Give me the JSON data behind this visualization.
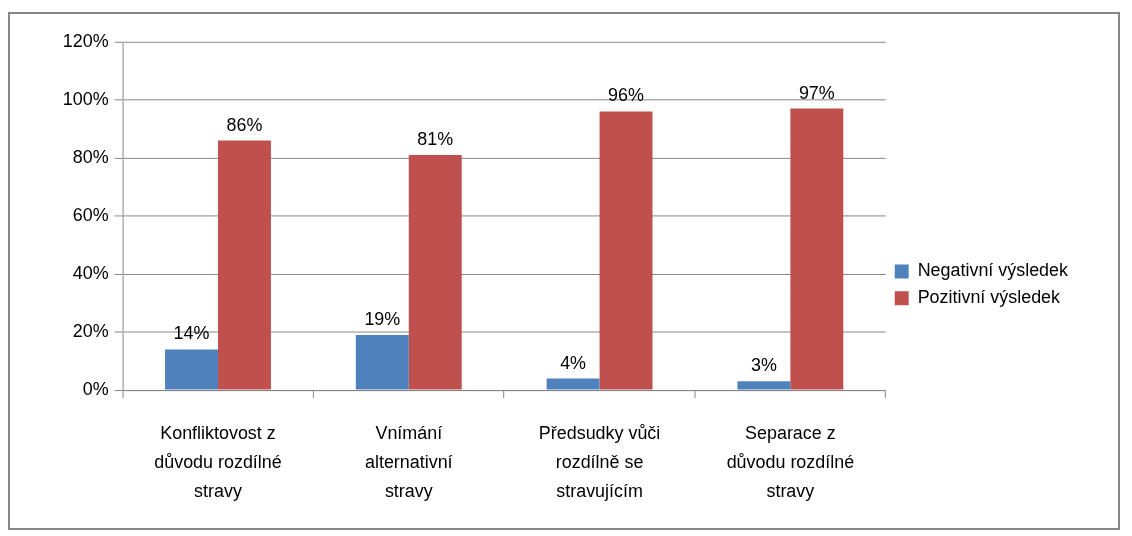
{
  "chart_data": {
    "type": "bar",
    "categories": [
      "Konfliktovost z důvodu rozdílné stravy",
      "Vnímání alternativní stravy",
      "Předsudky vůči rozdílně se stravujícím",
      "Separace z důvodu rozdílné stravy"
    ],
    "series": [
      {
        "name": "Negativní výsledek",
        "color": "#4f81bd",
        "values": [
          14,
          19,
          4,
          3
        ],
        "value_labels": [
          "14%",
          "19%",
          "4%",
          "3%"
        ]
      },
      {
        "name": "Pozitivní výsledek",
        "color": "#c0504d",
        "values": [
          86,
          81,
          96,
          97
        ],
        "value_labels": [
          "86%",
          "81%",
          "96%",
          "97%"
        ]
      }
    ],
    "ylim": [
      0,
      120
    ],
    "yticks": [
      {
        "value": 0,
        "label": "0%"
      },
      {
        "value": 20,
        "label": "20%"
      },
      {
        "value": 40,
        "label": "40%"
      },
      {
        "value": 60,
        "label": "60%"
      },
      {
        "value": 80,
        "label": "80%"
      },
      {
        "value": 100,
        "label": "100%"
      },
      {
        "value": 120,
        "label": "120%"
      }
    ],
    "grid": "y",
    "legend": "right"
  }
}
